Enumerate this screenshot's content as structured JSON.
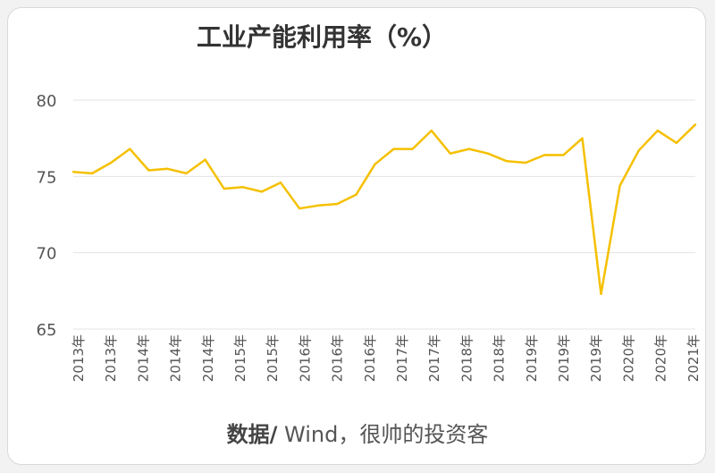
{
  "title": "工业产能利用率（%）",
  "source": {
    "label": "数据/",
    "text": " Wind，很帅的投资客"
  },
  "colors": {
    "line": "#F5C000",
    "grid": "#e3e3e3",
    "tick_text": "#555555"
  },
  "chart_data": {
    "type": "line",
    "title": "工业产能利用率（%）",
    "ylim": [
      65,
      80
    ],
    "yticks": [
      65,
      70,
      75,
      80
    ],
    "grid": true,
    "x_tick_labels": [
      "2013年",
      "2013年",
      "2014年",
      "2014年",
      "2014年",
      "2015年",
      "2015年",
      "2016年",
      "2016年",
      "2016年",
      "2017年",
      "2017年",
      "2018年",
      "2018年",
      "2019年",
      "2019年",
      "2019年",
      "2020年",
      "2020年",
      "2021年"
    ],
    "series": [
      {
        "values": [
          75.3,
          75.2,
          75.9,
          76.8,
          75.4,
          75.5,
          75.2,
          76.1,
          74.2,
          74.3,
          74.0,
          74.6,
          72.9,
          73.1,
          73.2,
          73.8,
          75.8,
          76.8,
          76.8,
          78.0,
          76.5,
          76.8,
          76.5,
          76.0,
          75.9,
          76.4,
          76.4,
          77.5,
          67.3,
          74.4,
          76.7,
          78.0,
          77.2,
          78.4
        ]
      }
    ]
  }
}
